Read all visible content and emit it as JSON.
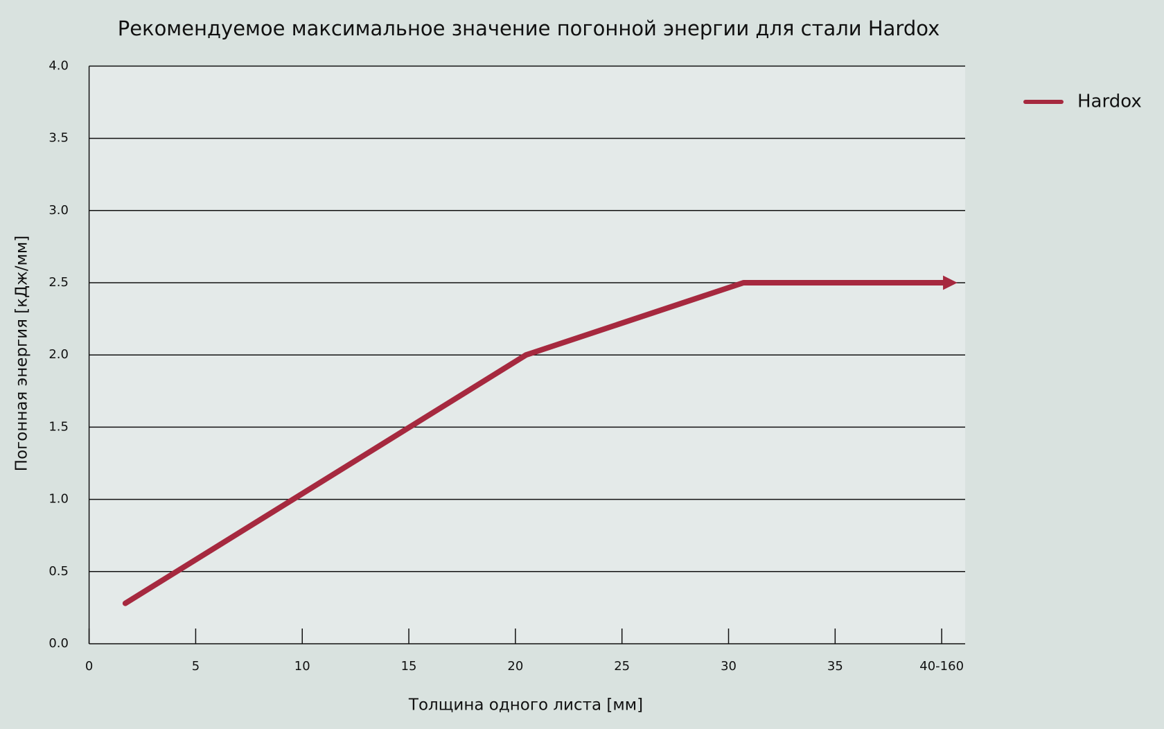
{
  "chart_data": {
    "type": "line",
    "title": "Рекомендуемое максимальное значение погонной энергии для стали Hardox",
    "x_label": "Толщина одного листа [мм]",
    "y_label": "Погонная энергия [кДж/мм]",
    "x": [
      1.7,
      20.5,
      30.7,
      40.4
    ],
    "series": [
      {
        "name": "Hardox",
        "color": "#a6293f",
        "values": [
          0.28,
          2.0,
          2.5,
          2.5
        ]
      }
    ],
    "xlim": [
      0,
      41.1
    ],
    "ylim": [
      0,
      4
    ],
    "xticks": [
      0,
      5,
      10,
      15,
      20,
      25,
      30,
      35,
      {
        "value": 40,
        "label": "40-160"
      }
    ],
    "yticks": [
      {
        "value": 0,
        "label": "0.0"
      },
      0.5,
      {
        "value": 1,
        "label": "1.0"
      },
      1.5,
      {
        "value": 2,
        "label": "2.0"
      },
      2.5,
      {
        "value": 3,
        "label": "3.0"
      },
      3.5,
      {
        "value": 4,
        "label": "4.0"
      }
    ],
    "grid": true,
    "legend": "right"
  }
}
